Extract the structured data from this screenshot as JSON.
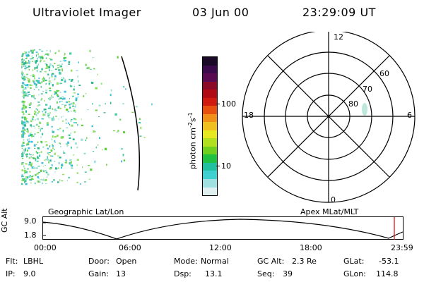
{
  "header": {
    "instrument": "Ultraviolet Imager",
    "date": "03 Jun 00",
    "time": "23:29:09 UT"
  },
  "colorbar": {
    "title_main": "photon cm",
    "title_exp1": "-2",
    "title_mid": "s",
    "title_exp2": "-1",
    "tick_100": "100",
    "tick_10": "10",
    "colors": [
      "#1a0a28",
      "#3a0a4a",
      "#5a0a50",
      "#8a0a28",
      "#b00a14",
      "#d01a10",
      "#e85010",
      "#f09018",
      "#f0c020",
      "#e8e820",
      "#b0e020",
      "#70d020",
      "#20c040",
      "#20c0a0",
      "#40d0d0",
      "#a0e0e0",
      "#e0f0f0"
    ]
  },
  "polar": {
    "mlt_top": "12",
    "mlt_bottom": "0",
    "mlt_left": "18",
    "mlt_right": "6",
    "lat_60": "60",
    "lat_70": "70",
    "lat_80": "80"
  },
  "orbit_panel": {
    "left_title": "Geographic Lat/Lon",
    "right_title": "Apex MLat/MLT",
    "ylabel": "GC Alt",
    "ytick_top": "9.0",
    "ytick_bottom": "1.8",
    "xticks": [
      "00:00",
      "06:00",
      "12:00",
      "18:00",
      "23:59"
    ]
  },
  "status": {
    "flt_label": "Flt:",
    "flt_value": "LBHL",
    "ip_label": "IP:",
    "ip_value": "9.0",
    "door_label": "Door:",
    "door_value": "Open",
    "gain_label": "Gain:",
    "gain_value": "13",
    "mode_label": "Mode:",
    "mode_value": "Normal",
    "dsp_label": "Dsp:",
    "dsp_value": "13.1",
    "gcalt_label": "GC Alt:",
    "gcalt_value": "2.3 Re",
    "seq_label": "Seq:",
    "seq_value": "39",
    "glat_label": "GLat:",
    "glat_value": "-53.1",
    "glon_label": "GLon:",
    "glon_value": "114.8"
  }
}
